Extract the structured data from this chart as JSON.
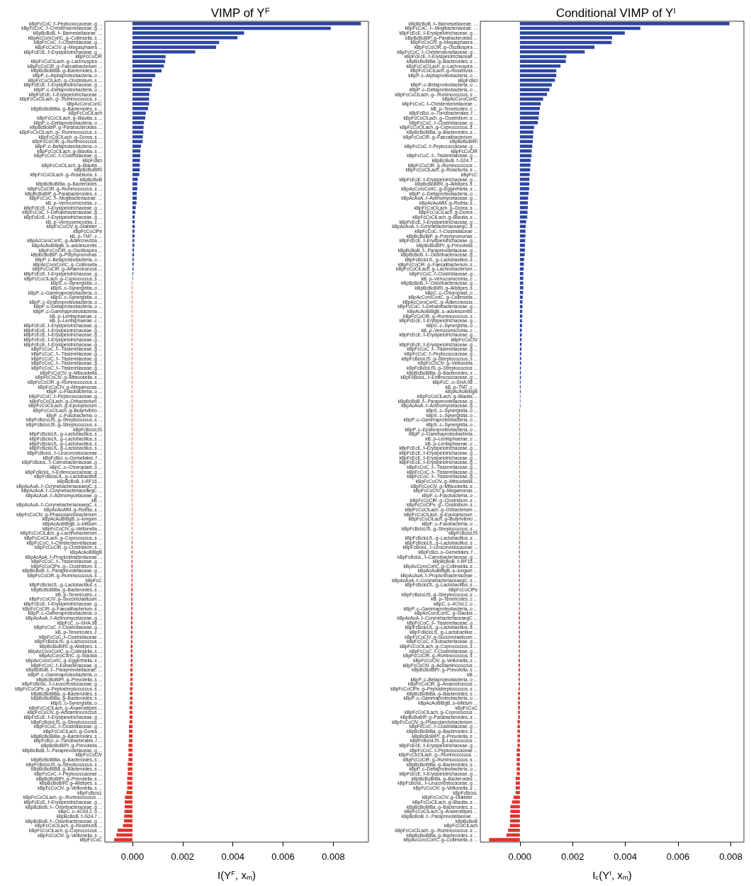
{
  "chart_data": [
    {
      "type": "bar",
      "orientation": "horizontal",
      "title": "VIMP of Y$^{F}$",
      "xlabel": "I(Y$^{F}$, x$_{m}$)",
      "xlim": [
        -0.0011,
        0.0094
      ],
      "xticks": [
        {
          "value": 0,
          "label": "0.000"
        },
        {
          "value": 0.002,
          "label": "0.002"
        },
        {
          "value": 0.004,
          "label": "0.004"
        },
        {
          "value": 0.006,
          "label": "0.006"
        },
        {
          "value": 0.008,
          "label": "0.008"
        }
      ],
      "categories": [
        "kBpFcCoC..f–Peptococcaceae..g ...",
        "kBpFcCoC..f–Christensenellaceae..g ...",
        "kBpBcBoB..f–.Barnesiellaceae. ...",
        "kBpAcCoroCorIC..g–Collinsella..s ...",
        "kBpFcCoC..f–Clostridiaceae..g ...",
        "kBpFcCoClV..g–Megasphaera ...",
        "kBpFcEcE..f–Erysipelotrichaceae..g ...",
        "kBpFcCoClR",
        "kBpFcCoClLach..g–Lachnospira ...",
        "kBpFcCoClR..g–Faecalibacterium ...",
        "kBpBcBoBIBa..g–Bacteroides..s ...",
        "kBpP..c–Alphaproteobacteria..o ...",
        "kBpFcCoClLach..g–Clostridium..s ...",
        "kBpFcEcE..f–Erysipelotrichaceae..g ...",
        "kBpP..c–Deltaproteobacteria..o ...",
        "kBpFcEcE..f–Erysipelotrichaceae ...",
        "kBpFcCoClLach..g–.Ruminococcus..s ...",
        "kBpAcCoroCorIC",
        "kBpBcBoBIBa..g–Bacteroides..s ...",
        "kBpFcCoClLach",
        "kBpFcCoClLach..g–Blautia..s ...",
        "kBpP..c–Deltaproteobacteria..o ...",
        "kBpBcBoBIP..g–Parabacteroides ...",
        "kBpFcCoClLach..g–.Ruminococcus..s ...",
        "kBpFcCoClLach..g–Dorea..s ...",
        "kBpFcCoClR..g–Ruminococcus ...",
        "kBpP..c–Betaproteobacteria..o ...",
        "kBpFcCoClLach..g–Blautia..s ...",
        "kBpFcCoC..f–Clostridiaceae..g ...",
        "kBpFcBci",
        "kBpFcCoClLach..g–Blautia ...",
        "kBpBcBoBIRi",
        "kBpFcCoClLach..g–Roseburia..s ...",
        "kBpBcBoB",
        "kBpBcBoBIBa..g–Bacteroides ...",
        "kBpFcCoClR..g–Ruminococcus..s ...",
        "kBpBcBoBIP..g–Parabacteroides..s ...",
        "kBpFcCoC..f–.Mogibacteriaceae. ...",
        "kB..p–Verrucomicrobia..c ...",
        "kBpFcEcE..f–Erysipelotrichaceae..g ...",
        "kBpFcCoC..f–Dehalobacteriaceae..g ...",
        "kBpFcEcE..f–Erysipelotrichaceae..g ...",
        "kB..p–Verrucomicrobia..c ...",
        "kBpFcCoClV..g–Dialister ...",
        "kBpFcCoClPe",
        "kB..p–TM7..c ...",
        "kBpAcCoroCorIC..g–Adlercreutzia ...",
        "kBpAcAoBIBgB..s–adolescentis ...",
        "kBpFcCoClR..g–Oscillospira ...",
        "kBpBcBoBIP..g–Porphyromonas ...",
        "kBpP..c–Betaproteobacteria..o ...",
        "kBpAcCoroCorIC..g–Collinsella ...",
        "kBpFcCoClR..g–Anaerotruncus ...",
        "kBpFcEcE..f–Erysipelotrichaceae..g ...",
        "kBpFcCoClLach..g–Coprococcus..s ...",
        "kBpS..c–Synergistia..o ...",
        "kBpS..c–Synergistia..o ...",
        "kBpP..c–Gammaproteobacteria..o ...",
        "kBpS..c–Synergistia..o ...",
        "kBpP..c–Epsilonproteobacteria..o ...",
        "kBpP..c–Deltaproteobacteria..o ...",
        "kBpP..c–Gammaproteobacteria ...",
        "kB..p–Lentisphaerae..c ...",
        "kB..p–Lentisphaerae..c ...",
        "kBpFcEcE..f–Erysipelotrichaceae..g ...",
        "kBpFcEcE..f–Erysipelotrichaceae..g ...",
        "kBpFcEcE..f–Erysipelotrichaceae..g ...",
        "kBpFcEcE..f–Erysipelotrichaceae..g ...",
        "kBpFcEcE..f–Erysipelotrichaceae..g ...",
        "kBpFcCoC..f–.Tissierellaceae..g ...",
        "kBpFcCoC..f–.Tissierellaceae..g ...",
        "kBpFcCoC..f–.Tissierellaceae..g ...",
        "kBpFcCoC..f–.Tissierellaceae..g ...",
        "kBpFcCoC..f–.Tissierellaceae..g ...",
        "kBpFcCoClV..g–Mitsuokella ...",
        "kBpFcCoClV..g–Mitsuokella..s ...",
        "kBpFcCoClR..g–Ruminococcus..s ...",
        "kBpFcCoClV..g–Megamonas ...",
        "kBpF..c–Fusobacteriia..o ...",
        "kBpFcCoC..f–Peptococcaceae..g ...",
        "kBpFcCoClLach..g–Oribacterium ...",
        "kBpFcCoClLach..g–Epulopiscium ...",
        "kBpFcCoClLach..g–Butyrivibrio ...",
        "kBpF..c–Fusobacteriia..o ...",
        "kBpFcBcioLfS..g–Streptococcus..s ...",
        "kBpFcBcioLfS..g–Streptococcus..s ...",
        "kBpFcBcioLfS",
        "kBpFcBcioLfL..g–Lactobacillus..s ...",
        "kBpFcBcioLfL..g–Lactobacillus..s ...",
        "kBpFcBcioLfL..g–Lactobacillus..s ...",
        "kBpFcBcioLfL..g–Lactobacillus..s ...",
        "kBpFcBcioL..f–Leuconostocaceae ...",
        "kBpFcBci..o–Gemellales..f ...",
        "kBpFcBcioL..f–Carnobacteriaceae..g ...",
        "kBpC..c–Chloroplast..o ...",
        "kBpFcBcioL..f–Enterococcaceae..g ...",
        "kBpFcBcioLfL..g–Lactobacillus ...",
        "kBpBcBoB..f–RF16 ...",
        "kBpAcAoA..f–CorynebacteriaceaegC..s ...",
        "kBpAcAoA..f–CorynebacteriaceaegC ...",
        "kBpAcAoA..f–Actinomycetaceae..g ...",
        "kB ...",
        "kBpAcAoA..f–CorynebacteriaceaegC..s ...",
        "kBpAcAoAfM..g–Rothia..s ...",
        "kBpFcCoClV..g–Phascolarctobacterium ...",
        "kBpAcAoBIBgB..s–longum ...",
        "kBpAcAoBIBgB..s–bifidum ...",
        "kBpFcCoClV..g–Veillonella ...",
        "kBpFcCoClLach..g–Lachnobacterium ...",
        "kBpFcCoClLach..g–Coprococcus..s ...",
        "kBpFcCoC..f–Christensenellaceae ...",
        "kBpFcCoClR..g–Clostridium..s ...",
        "kBpAcAoBIBgB",
        "kBpAcAoA..f–Propionibacteriaceae ...",
        "kBpFcCoC..f–.Tissierellaceae..g ...",
        "kBpFcCoClPe..g–.Clostridium..s ...",
        "kBpBcBoB..f–.Paraprevotellaceae..g ...",
        "kBpFcCoClR..g–Ruminococcus..s ...",
        "kBpFcC",
        "kBpFcBcioLfL..g–Lactobacillus..s ...",
        "kBpBcBoBIBa..g–Bacteroides..s ...",
        "kB..p–Tenericutes..c ...",
        "kBpFcCoClV..g–Succiniclasticum ...",
        "kBpFcEcE..f–Erysipelotrichaceae..g ...",
        "kBpFcCoClR..g–Faecalibacterium..s ...",
        "kBpP..c–Gammaproteobacteria..o ...",
        "kBpAcAoA..f–Actinomycetaceae..g ...",
        "kBpFcC..o–SHA.98 ...",
        "kBpFcCoC..f–Clostridiaceae..g ...",
        "kB..p–Tenericutes..c ...",
        "kBpFcCoC..f–Clostridiaceae ...",
        "kBpFcBcioLfS..g–Lactococcus ...",
        "kBpBcBoBIRi..g–Alistipes..s ...",
        "kBpAcCoroCorIC..g–Collinsella..s ...",
        "kBpAcCoroCorIC..g–Slackia ...",
        "kBpAcCoroCorIC..g–Eggerthella..s ...",
        "kBpFcCoC..f–Eubacteriaceae..g ...",
        "kBpBcBoB..f–.Paraprevotellaceae. ...",
        "kBpP..c–Gammaproteobacteria..o ...",
        "kBpBcBoBIPr..g–Prevotella..s ...",
        "kBpFcBcioL..f–Leuconostocaceae..g ...",
        "kBpFcCoClPe..g–Peptostreptococcus..s ...",
        "kBpBcBoBIBa..g–Bacteroides..s ...",
        "kBpBcBoBIBa..g–Bacteroides..s ...",
        "kBpS..c–Synergistia..o ...",
        "kBpFcCoClLach..g–Anaerostipes ...",
        "kBpFcCoClV..g–Acidaminococcus ...",
        "kBpFcEcE..f–Erysipelotrichaceae..g ...",
        "kBpFcBcioLfS..g–Streptococcus ...",
        "kBpFcCoC..f–Clostridiaceae..g ...",
        "kBpFcCoClLach..g–Dorea ...",
        "kBpBcBoBIBa..g–Bacteroides..s ...",
        "kBpFcBci..o–Turicibacterales..f ...",
        "kBpBcBoBIPr..g–Prevotella ...",
        "kBpBcBoB..f–.Paraprevotellaceae..g ...",
        "kBpFcCoClV",
        "kBpBcBoBIBa..g–Bacteroides..s ...",
        "kBpFcBcioLfS..g–Streptococcus..s ...",
        "kBpBcBoBIBa..g–Bacteroides..s ...",
        "kBpFcCoC..f–Peptococcaceae ...",
        "kBpBcBoBIPr..g–Prevotella..s ...",
        "kBpBcBoBIRi..g–Alistipes..s ...",
        "kBpFcCoClV..g–Veillonella..s ...",
        "kBpFcBcioL",
        "kBpFcCoClLach..g–.Ruminococcus. ...",
        "kBpFcEcE..f–Erysipelotrichaceae..g ...",
        "kBpBcBoB..f–.Odoribacteraceae..g ...",
        "kBpC..c–4C0d.2..o ...",
        "kBpBcBoB..f–S24.7 ...",
        "kBpBcBoB..f–.Odoribacteraceae..g ...",
        "kBpFcCoClLach..g–Roseburia ...",
        "kBpFcCoClLach..g–Coprococcus ...",
        "kBpFcCoClV..g–Veillonella..s ...",
        "kBpFcCoC"
      ],
      "values": [
        0.0091,
        0.0079,
        0.00445,
        0.00418,
        0.00345,
        0.00333,
        0.0025,
        0.00132,
        0.0013,
        0.00125,
        0.00116,
        0.00091,
        0.00079,
        0.00077,
        0.0007,
        0.00067,
        0.00066,
        0.00066,
        0.00062,
        0.00053,
        0.00051,
        0.00046,
        0.00044,
        0.00043,
        0.00041,
        0.0004,
        0.00034,
        0.00031,
        0.00031,
        0.0003,
        0.00029,
        0.00029,
        0.00027,
        0.00021,
        0.00019,
        0.00019,
        0.00017,
        0.00017,
        0.00016,
        0.00013,
        0.00011,
        9e-05,
        9e-05,
        9e-05,
        8e-05,
        8e-05,
        7e-05,
        7e-05,
        6e-05,
        6e-05,
        5e-05,
        5e-05,
        4e-05,
        3e-05,
        2e-05,
        -2e-05,
        -2e-05,
        -2e-05,
        -2e-05,
        -2e-05,
        -2e-05,
        -2e-05,
        -2e-05,
        -2e-05,
        -2e-05,
        -2e-05,
        -2e-05,
        -2e-05,
        -2e-05,
        -2e-05,
        -2e-05,
        -2e-05,
        -2e-05,
        -2e-05,
        -2e-05,
        -2e-05,
        -2e-05,
        -2e-05,
        -2e-05,
        -2e-05,
        -2e-05,
        -2e-05,
        -2e-05,
        -2e-05,
        -2e-05,
        -2e-05,
        -2e-05,
        -2e-05,
        -2e-05,
        -2e-05,
        -2e-05,
        -2e-05,
        -2e-05,
        -2e-05,
        -2e-05,
        -2e-05,
        -2e-05,
        -2e-05,
        -2e-05,
        -2e-05,
        -2e-05,
        -2e-05,
        -2e-05,
        -2e-05,
        -2e-05,
        -2e-05,
        -2e-05,
        -2e-05,
        -2e-05,
        -2e-05,
        -3e-05,
        -3e-05,
        -3e-05,
        -3e-05,
        -4e-05,
        -4e-05,
        -4e-05,
        -4e-05,
        -4e-05,
        -4e-05,
        -5e-05,
        -5e-05,
        -5e-05,
        -5e-05,
        -5e-05,
        -5e-05,
        -6e-05,
        -6e-05,
        -6e-05,
        -6e-05,
        -6e-05,
        -6e-05,
        -7e-05,
        -7e-05,
        -7e-05,
        -7e-05,
        -7e-05,
        -8e-05,
        -8e-05,
        -8e-05,
        -8e-05,
        -0.0001,
        -0.0001,
        -0.0001,
        -0.0001,
        -0.00012,
        -0.00012,
        -0.00012,
        -0.00012,
        -0.00014,
        -0.00014,
        -0.00014,
        -0.00014,
        -0.00016,
        -0.00016,
        -0.00016,
        -0.00016,
        -0.00019,
        -0.00019,
        -0.00019,
        -0.00021,
        -0.00021,
        -0.00021,
        -0.00024,
        -0.0003,
        -0.00031,
        -0.00031,
        -0.00032,
        -0.00033,
        -0.00034,
        -0.00038,
        -0.00059,
        -0.00064,
        -0.00073
      ],
      "colors": [
        "#2e45a0",
        "#2e45a0",
        "#2e45a0",
        "#2e45a0",
        "#2e45a0",
        "#2e45a0",
        "#2e45a0",
        "#2e45a0",
        "#2e45a0",
        "#2e45a0",
        "#2e45a0",
        "#2e45a0",
        "#2e45a0",
        "#2e45a0",
        "#2e45a0",
        "#2e45a0",
        "#2e45a0",
        "#2e45a0",
        "#2e45a0",
        "#2e45a0",
        "#2e45a0",
        "#2e45a0",
        "#2e45a0",
        "#2e45a0",
        "#2e45a0",
        "#2e45a0",
        "#2e45a0",
        "#2e45a0",
        "#2e45a0",
        "#2e45a0",
        "#2e45a0",
        "#2e45a0",
        "#2e45a0",
        "#2e45a0",
        "#2e45a0",
        "#2e45a0",
        "#2e45a0",
        "#2e45a0",
        "#2e45a0",
        "#2e45a0",
        "#2e45a0",
        "#2e45a0",
        "#2e45a0",
        "#2e45a0",
        "#2e45a0",
        "#2e45a0",
        "#2e45a0",
        "#2e45a0",
        "#2e45a0",
        "#2e45a0",
        "#2e45a0",
        "#2e45a0",
        "#2e45a0",
        "#2e45a0",
        "#2e45a0",
        "#e0332b",
        "#e0332b",
        "#e0332b",
        "#e0332b",
        "#e0332b",
        "#e0332b",
        "#e0332b",
        "#e0332b",
        "#e0332b",
        "#e0332b",
        "#e0332b",
        "#e0332b",
        "#e0332b",
        "#e0332b",
        "#e0332b",
        "#e0332b",
        "#e0332b",
        "#e0332b",
        "#e0332b",
        "#e0332b",
        "#e0332b",
        "#e0332b",
        "#e0332b",
        "#e0332b",
        "#e0332b",
        "#e0332b",
        "#e0332b",
        "#e0332b",
        "#e0332b",
        "#e0332b",
        "#e0332b",
        "#e0332b",
        "#e0332b",
        "#e0332b",
        "#e0332b",
        "#e0332b",
        "#e0332b",
        "#e0332b",
        "#e0332b",
        "#e0332b",
        "#e0332b",
        "#e0332b",
        "#e0332b",
        "#e0332b",
        "#e0332b",
        "#e0332b",
        "#e0332b",
        "#e0332b",
        "#e0332b",
        "#e0332b",
        "#e0332b",
        "#e0332b",
        "#e0332b",
        "#e0332b",
        "#e0332b",
        "#e0332b",
        "#e0332b",
        "#e0332b",
        "#e0332b",
        "#e0332b",
        "#e0332b",
        "#e0332b",
        "#e0332b",
        "#e0332b",
        "#e0332b",
        "#e0332b",
        "#e0332b",
        "#e0332b",
        "#e0332b",
        "#e0332b",
        "#e0332b",
        "#e0332b",
        "#e0332b",
        "#e0332b",
        "#e0332b",
        "#e0332b",
        "#e0332b",
        "#e0332b",
        "#e0332b",
        "#e0332b",
        "#e0332b",
        "#e0332b",
        "#e0332b",
        "#e0332b",
        "#e0332b",
        "#e0332b",
        "#e0332b",
        "#e0332b",
        "#e0332b",
        "#e0332b",
        "#e0332b",
        "#e0332b",
        "#e0332b",
        "#e0332b",
        "#e0332b",
        "#e0332b",
        "#e0332b",
        "#e0332b",
        "#e0332b",
        "#e0332b",
        "#e0332b",
        "#e0332b",
        "#e0332b",
        "#e0332b",
        "#e0332b",
        "#e0332b",
        "#e0332b",
        "#e0332b",
        "#e0332b",
        "#e0332b",
        "#e0332b",
        "#e0332b",
        "#e0332b",
        "#e0332b",
        "#e0332b",
        "#e0332b",
        "#e0332b",
        "#e0332b",
        "#e0332b"
      ]
    },
    {
      "type": "bar",
      "orientation": "horizontal",
      "title": "Conditional VIMP of Y$^{I}$",
      "xlabel": "I$_{c}$(Y$^{I}$, x$_{m}$)",
      "xlim": [
        -0.0015,
        0.0085
      ],
      "xticks": [
        {
          "value": 0,
          "label": "0.000"
        },
        {
          "value": 0.002,
          "label": "0.002"
        },
        {
          "value": 0.004,
          "label": "0.004"
        },
        {
          "value": 0.006,
          "label": "0.006"
        },
        {
          "value": 0.008,
          "label": "0.008"
        }
      ],
      "categories": [
        "kBpBcBoB..f–.Barnesiellaceae. ...",
        "kBpFcCoC..f–.Mogibacteriaceae. ...",
        "kBpFcEcE..f–Erysipelotrichaceae..g ...",
        "kBpBcBoBIP..g–Parabacteroides ...",
        "kBpFcCoClV..g–Megasphaera ...",
        "kBpFcCoClR..g–Oscillospira ...",
        "kBpFcCoC..f–Christensenellaceae..g ...",
        "kBpFcEcE..f–Erysipelotrichaceae ...",
        "kBpBcBoBIBa..g–Bacteroides..s ...",
        "kBpFcCoClLach..g–Lachnospira ...",
        "kBpFcCoClLach..g–Roseburia ...",
        "kBpP..c–Alphaproteobacteria..o ...",
        "kBpFcBci",
        "kBpP..c–Betaproteobacteria..o ...",
        "kBpP..c–Deltaproteobacteria..o ...",
        "kBpFcCoClLach..g–.Ruminococcus..s ...",
        "kBpAcCoroCorIC",
        "kBpFcCoC..f–Christensenellaceae ...",
        "kB..p–Tenericutes..c ...",
        "kBpFcBci..o–Turicibacterales..f ...",
        "kBpFcCoClLach..g–Clostridium..s ...",
        "kBpFcCoC..f–Clostridiaceae..g ...",
        "kBpFcCoClLach..g–Coprococcus..s ...",
        "kBpBcBoBIBa..g–Bacteroides..s ...",
        "kBpFcCoClR..g–Faecalibacterium ...",
        "kBpBcBoBIRi",
        "kBpFcCoC..f–Peptococcaceae..g ...",
        "kBpFcCoClR",
        "kBpFcCoC..f–.Tissierellaceae..g ...",
        "kBpBcBoB..f–S24.7 ...",
        "kBpFcCoClR..g–Ruminococcus ...",
        "kBpFcCoClLach..g–Roseburia..s ...",
        "kBpFcC",
        "kBpFcEcE..f–Erysipelotrichaceae..g ...",
        "kBpBcBoBIRi..g–Alistipes..s ...",
        "kBpAcCoroCorIC..g–Eggerthella..s ...",
        "kBpP..c–Deltaproteobacteria..o ...",
        "kBpAcAoA..f–Actinomycetaceae..g ...",
        "kBpAcAoAfM..g–Rothia..s ...",
        "kBpFcCoClLach..g–Dorea..s ...",
        "kBpFcCoClLach..g–Dorea ...",
        "kBpFcCoClLach..g–Blautia..s ...",
        "kBpFcEcE..f–Erysipelotrichaceae..g ...",
        "kBpAcAoA..f–CorynebacteriaceaegC..s ...",
        "kBpFcCoC..f–Clostridiaceae ...",
        "kBpBcBoBIP..g–Porphyromonas ...",
        "kBpFcEcE..f–Erysipelotrichaceae..g ...",
        "kBpBcBoBIPr..g–Prevotella ...",
        "kBpBcBoB..f–.Paraprevotellaceae..g ...",
        "kBpBcBoB..f–.Odoribacteraceae..g ...",
        "kBpFcBcioLfL..g–Lactobacillus..s ...",
        "kBpFcCoClR..g–Faecalibacterium..s ...",
        "kBpFcCoClLach..g–Lachnobacterium ...",
        "kBpFcCoC..f–Clostridiaceae..g ...",
        "kB..p–Verrucomicrobia..c ...",
        "kBpBcBoB..f–.Odoribacteraceae..g ...",
        "kBpBcBoBIRi..g–Alistipes..s ...",
        "kBpC..c–Chloroplast..o ...",
        "kBpAcCoroCorIC..g–Collinsella ...",
        "kBpAcCoroCorIC..g–Adlercreutzia ...",
        "kBpFcCoC..f–Dehalobacteriaceae..g ...",
        "kBpAcAoBIBgB..s–adolescentis ...",
        "kBpFcCoClR..g–Ruminococcus..s ...",
        "kBpFcEcE..f–Erysipelotrichaceae..g ...",
        "kBpS..c–Synergistia..o ...",
        "kB..p–Verrucomicrobia..c ...",
        "kBpFcEcE..f–Erysipelotrichaceae..g ...",
        "kBpFcCoClV",
        "kBpFcEcE..f–Erysipelotrichaceae..g ...",
        "kBpFcCoC..f–.Tissierellaceae..g ...",
        "kBpFcCoC..f–Peptococcaceae..g ...",
        "kBpFcBcioLfS..g–Streptococcus..s ...",
        "kBpFcCoClV..g–Veillonella ...",
        "kBpFcBcioLfS..g–Streptococcus ...",
        "kBpBcBoBIBa..g–Bacteroides..s ...",
        "kBpFcBcioL..f–Enterococcaceae..g ...",
        "kBpFcC..o–SHA.98 ...",
        "kB..p–TM7..c ...",
        "kBpAcAoBIBgB",
        "kBpFcCoClLach..g–Blautia ...",
        "kBpBcBoB..f–.Paraprevotellaceae..g ...",
        "kBpAcAoA..f–Actinomycetaceae..g ...",
        "kBpS..c–Synergistia..o ...",
        "kBpS..c–Synergistia..o ...",
        "kBpP..c–Gammaproteobacteria..o ...",
        "kBpS..c–Synergistia..o ...",
        "kBpP..c–Epsilonproteobacteria..o ...",
        "kBpP..c–Gammaproteobacteria ...",
        "kB..p–Lentisphaerae..c ...",
        "kB..p–Lentisphaerae..c ...",
        "kBpFcEcE..f–Erysipelotrichaceae..g ...",
        "kBpFcEcE..f–Erysipelotrichaceae..g ...",
        "kBpFcEcE..f–Erysipelotrichaceae..g ...",
        "kBpFcEcE..f–Erysipelotrichaceae..g ...",
        "kBpFcCoC..f–.Tissierellaceae..g ...",
        "kBpFcCoC..f–.Tissierellaceae..g ...",
        "kBpFcCoC..f–.Tissierellaceae..g ...",
        "kBpFcCoClV..g–Mitsuokella ...",
        "kBpFcCoClV..g–Mitsuokella..s ...",
        "kBpFcCoClV..g–Megamonas ...",
        "kBpF..c–Fusobacteriia..o ...",
        "kBpFcCoClR..g–Clostridium..s ...",
        "kBpFcCoClPe..g–.Clostridium..s ...",
        "kBpFcCoClLach..g–Oribacterium ...",
        "kBpFcCoClLach..g–Epulopiscium ...",
        "kBpFcCoClLach..g–Butyrivibrio ...",
        "kBpF..c–Fusobacteriia..o ...",
        "kBpFcBcioLfS..g–Streptococcus..s ...",
        "kBpFcBcioLfS",
        "kBpFcBcioLfL..g–Lactobacillus..s ...",
        "kBpFcBcioLfL..g–Lactobacillus..s ...",
        "kBpFcBcioL..f–Leuconostocaceae ...",
        "kBpFcBci..o–Gemellales..f ...",
        "kBpFcBcioL..f–Carnobacteriaceae..g ...",
        "kBpBcBoB..f–RF16 ...",
        "kBpAcCoroCorIC..g–Collinsella..s ...",
        "kBpAcAoBIBgB..s–longum ...",
        "kBpAcAoA..f–Propionibacteriaceae ...",
        "kBpAcAoA..f–CorynebacteriaceaegC..s ...",
        "kBpFcBcioLfL..g–Lactobacillus..s ...",
        "kBpFcCoClPe",
        "kBpFcBcioLfS..g–Streptococcus..s ...",
        "kB..p–Tenericutes..c ...",
        "kBpC..c–4C0d.2..o ...",
        "kBpP..c–Gammaproteobacteria..o ...",
        "kBpAcCoroCorIC..g–Slackia ...",
        "kBpAcAoA..f–CorynebacteriaceaegC ...",
        "kBpFcCoC..f–.Tissierellaceae..g ...",
        "kBpFcBcioLfL..g–Lactobacillus..s ...",
        "kBpFcBcioLfL..g–Lactobacillus ...",
        "kBpFcCoClV..g–Succiniclasticum ...",
        "kBpFcCoC..f–Eubacteriaceae..g ...",
        "kBpFcCoClLach..g–Coprococcus..s ...",
        "kBpFcCoC..f–Clostridiaceae..g ...",
        "kBpFcCoClR..g–Ruminococcus..s ...",
        "kBpFcCoClV..g–Veillonella..s ...",
        "kBpFcCoClV..g–Acidaminococcus ...",
        "kBpBcBoBIPr..g–Prevotella..s ...",
        "kB ...",
        "kBpP..c–Betaproteobacteria..o ...",
        "kBpFcCoClR..g–Anaerotruncus ...",
        "kBpFcCoClPe..g–Peptostreptococcus..s ...",
        "kBpBcBoBIBa..g–Bacteroides..s ...",
        "kBpP..c–Gammaproteobacteria..o ...",
        "kBpAcAoBIBgB..s–bifidum ...",
        "kBpFcCoC",
        "kBpFcCoClLach..g–Coprococcus ...",
        "kBpBcBoBIP..g–Parabacteroides..s ...",
        "kBpFcCoClV..g–Phascolarctobacterium ...",
        "kBpFcCoC..f–Clostridiaceae..g ...",
        "kBpBcBoBIBa..g–Bacteroides..s ...",
        "kBpBcBoBIPr..g–Prevotella..s ...",
        "kBpFcBcioLfS..g–Lactococcus ...",
        "kBpFcEcE..f–Erysipelotrichaceae..g ...",
        "kBpFcCoC..f–Peptococcaceae ...",
        "kBpFcCoClLach..g–.Ruminococcus. ...",
        "kBpFcCoClR..g–Ruminococcus..s ...",
        "kBpBcBoBIBa..g–Bacteroides..s ...",
        "kBpP..c–Deltaproteobacteria..o ...",
        "kBpFcEcE..f–Erysipelotrichaceae..g ...",
        "kBpBcBoBIBa..g–Bacteroides ...",
        "kBpFcBcioL..f–Leuconostocaceae..g ...",
        "kBpFcCoClV..g–Veillonella..s ...",
        "kBpFcBcioL",
        "kBpFcCoClV..g–Dialister ...",
        "kBpFcCoClLach..g–Blautia..s ...",
        "kBpBcBoBIBa..g–Bacteroides..s ...",
        "kBpFcCoClLach..g–Anaerostipes ...",
        "kBpBcBoB..f–.Paraprevotellaceae. ...",
        "kBpBcBoB",
        "kBpFcCoClLach",
        "kBpFcCoClLach..g–.Ruminococcus..s ...",
        "kBpBcBoBIBa..g–Bacteroides..s ...",
        "kBpAcCoroCorIC..g–Collinsella..s ..."
      ],
      "values": [
        0.00795,
        0.00457,
        0.00398,
        0.0035,
        0.00348,
        0.00283,
        0.00246,
        0.00176,
        0.00174,
        0.00154,
        0.00138,
        0.00138,
        0.00133,
        0.00121,
        0.00112,
        0.00103,
        0.00088,
        0.00079,
        0.00076,
        0.00073,
        0.00071,
        0.00068,
        0.00054,
        0.00051,
        0.0005,
        0.00049,
        0.00047,
        0.00045,
        0.00044,
        0.00041,
        0.0004,
        0.00039,
        0.00037,
        0.00036,
        0.00036,
        0.00035,
        0.00033,
        0.00031,
        0.0003,
        0.0003,
        0.00029,
        0.00028,
        0.00024,
        0.00022,
        0.00021,
        0.00021,
        0.0002,
        0.00019,
        0.00019,
        0.00018,
        0.00016,
        0.00015,
        0.00014,
        0.00013,
        0.00013,
        0.00013,
        0.00013,
        0.00012,
        0.00011,
        0.0001,
        0.0001,
        9e-05,
        9e-05,
        8e-05,
        8e-05,
        7e-05,
        7e-05,
        6e-05,
        6e-05,
        6e-05,
        5e-05,
        5e-05,
        5e-05,
        4e-05,
        4e-05,
        4e-05,
        3e-05,
        3e-05,
        3e-05,
        2e-05,
        2e-05,
        2e-05,
        -2e-05,
        -2e-05,
        -2e-05,
        -2e-05,
        -2e-05,
        -2e-05,
        -2e-05,
        -2e-05,
        -2e-05,
        -2e-05,
        -2e-05,
        -2e-05,
        -2e-05,
        -2e-05,
        -2e-05,
        -2e-05,
        -2e-05,
        -2e-05,
        -2e-05,
        -2e-05,
        -2e-05,
        -2e-05,
        -2e-05,
        -2e-05,
        -2e-05,
        -2e-05,
        -2e-05,
        -2e-05,
        -3e-05,
        -3e-05,
        -3e-05,
        -3e-05,
        -3e-05,
        -3e-05,
        -3e-05,
        -3e-05,
        -3e-05,
        -3e-05,
        -3e-05,
        -3e-05,
        -3e-05,
        -3e-05,
        -3e-05,
        -4e-05,
        -4e-05,
        -4e-05,
        -4e-05,
        -4e-05,
        -4e-05,
        -4e-05,
        -4e-05,
        -4e-05,
        -4e-05,
        -5e-05,
        -5e-05,
        -5e-05,
        -5e-05,
        -5e-05,
        -5e-05,
        -5e-05,
        -7e-05,
        -7e-05,
        -7e-05,
        -7e-05,
        -7e-05,
        -7e-05,
        -9e-05,
        -9e-05,
        -9e-05,
        -9e-05,
        -9e-05,
        -9e-05,
        -0.00012,
        -0.00012,
        -0.00012,
        -0.00012,
        -0.00012,
        -0.00012,
        -0.00016,
        -0.00016,
        -0.00016,
        -0.00016,
        -0.00024,
        -0.0003,
        -0.00036,
        -0.00036,
        -0.00037,
        -0.00037,
        -0.00038,
        -0.00045,
        -0.00051,
        -0.00117
      ],
      "colors": [
        "#2e45a0",
        "#2e45a0",
        "#2e45a0",
        "#2e45a0",
        "#2e45a0",
        "#2e45a0",
        "#2e45a0",
        "#2e45a0",
        "#2e45a0",
        "#2e45a0",
        "#2e45a0",
        "#2e45a0",
        "#2e45a0",
        "#2e45a0",
        "#2e45a0",
        "#2e45a0",
        "#2e45a0",
        "#2e45a0",
        "#2e45a0",
        "#2e45a0",
        "#2e45a0",
        "#2e45a0",
        "#2e45a0",
        "#2e45a0",
        "#2e45a0",
        "#2e45a0",
        "#2e45a0",
        "#2e45a0",
        "#2e45a0",
        "#2e45a0",
        "#2e45a0",
        "#2e45a0",
        "#2e45a0",
        "#2e45a0",
        "#2e45a0",
        "#2e45a0",
        "#2e45a0",
        "#2e45a0",
        "#2e45a0",
        "#2e45a0",
        "#2e45a0",
        "#2e45a0",
        "#2e45a0",
        "#2e45a0",
        "#2e45a0",
        "#2e45a0",
        "#2e45a0",
        "#2e45a0",
        "#2e45a0",
        "#2e45a0",
        "#2e45a0",
        "#2e45a0",
        "#2e45a0",
        "#2e45a0",
        "#2e45a0",
        "#2e45a0",
        "#2e45a0",
        "#2e45a0",
        "#2e45a0",
        "#2e45a0",
        "#2e45a0",
        "#2e45a0",
        "#2e45a0",
        "#2e45a0",
        "#2e45a0",
        "#2e45a0",
        "#2e45a0",
        "#2e45a0",
        "#2e45a0",
        "#2e45a0",
        "#2e45a0",
        "#2e45a0",
        "#2e45a0",
        "#2e45a0",
        "#2e45a0",
        "#2e45a0",
        "#2e45a0",
        "#2e45a0",
        "#2e45a0",
        "#2e45a0",
        "#2e45a0",
        "#2e45a0",
        "#e0332b",
        "#e0332b",
        "#e0332b",
        "#e0332b",
        "#e0332b",
        "#e0332b",
        "#e0332b",
        "#e0332b",
        "#e0332b",
        "#e0332b",
        "#e0332b",
        "#e0332b",
        "#e0332b",
        "#e0332b",
        "#e0332b",
        "#e0332b",
        "#e0332b",
        "#e0332b",
        "#e0332b",
        "#e0332b",
        "#e0332b",
        "#e0332b",
        "#e0332b",
        "#e0332b",
        "#e0332b",
        "#e0332b",
        "#e0332b",
        "#e0332b",
        "#e0332b",
        "#e0332b",
        "#e0332b",
        "#e0332b",
        "#e0332b",
        "#e0332b",
        "#e0332b",
        "#e0332b",
        "#e0332b",
        "#e0332b",
        "#e0332b",
        "#e0332b",
        "#e0332b",
        "#e0332b",
        "#e0332b",
        "#e0332b",
        "#e0332b",
        "#e0332b",
        "#e0332b",
        "#e0332b",
        "#e0332b",
        "#e0332b",
        "#e0332b",
        "#e0332b",
        "#e0332b",
        "#e0332b",
        "#e0332b",
        "#e0332b",
        "#e0332b",
        "#e0332b",
        "#e0332b",
        "#e0332b",
        "#e0332b",
        "#e0332b",
        "#e0332b",
        "#e0332b",
        "#e0332b",
        "#e0332b",
        "#e0332b",
        "#e0332b",
        "#e0332b",
        "#e0332b",
        "#e0332b",
        "#e0332b",
        "#e0332b",
        "#e0332b",
        "#e0332b",
        "#e0332b",
        "#e0332b",
        "#e0332b",
        "#e0332b",
        "#e0332b",
        "#e0332b",
        "#e0332b",
        "#e0332b",
        "#e0332b",
        "#e0332b",
        "#e0332b",
        "#e0332b",
        "#e0332b",
        "#e0332b",
        "#e0332b",
        "#e0332b",
        "#e0332b"
      ]
    }
  ]
}
